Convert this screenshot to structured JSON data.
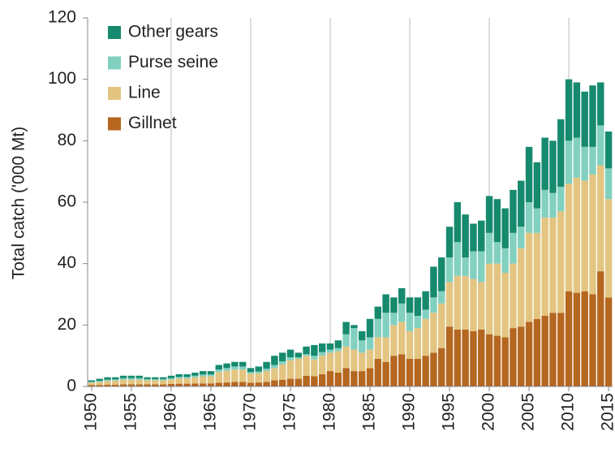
{
  "chart_data": {
    "type": "stacked_bar",
    "y_label": "Total catch ('000 Mt)",
    "x": [
      1950,
      1951,
      1952,
      1953,
      1954,
      1955,
      1956,
      1957,
      1958,
      1959,
      1960,
      1961,
      1962,
      1963,
      1964,
      1965,
      1966,
      1967,
      1968,
      1969,
      1970,
      1971,
      1972,
      1973,
      1974,
      1975,
      1976,
      1977,
      1978,
      1979,
      1980,
      1981,
      1982,
      1983,
      1984,
      1985,
      1986,
      1987,
      1988,
      1989,
      1990,
      1991,
      1992,
      1993,
      1994,
      1995,
      1996,
      1997,
      1998,
      1999,
      2000,
      2001,
      2002,
      2003,
      2004,
      2005,
      2006,
      2007,
      2008,
      2009,
      2010,
      2011,
      2012,
      2013,
      2014,
      2015
    ],
    "xlim": [
      1949.5,
      2015.5
    ],
    "xticks": [
      1950,
      1955,
      1960,
      1965,
      1970,
      1975,
      1980,
      1985,
      1990,
      1995,
      2000,
      2005,
      2010,
      2015
    ],
    "xgrid": [
      1960,
      1970,
      1980,
      1990,
      2000,
      2010
    ],
    "ylim": [
      0,
      120
    ],
    "yticks": [
      0,
      20,
      40,
      60,
      80,
      100,
      120
    ],
    "legend": "top-left",
    "series": [
      {
        "name": "Gillnet",
        "color": "#b5661f",
        "values": [
          0.5,
          0.5,
          0.6,
          0.6,
          0.7,
          0.7,
          0.7,
          0.7,
          0.7,
          0.7,
          0.8,
          0.9,
          0.9,
          1,
          1,
          1,
          1.2,
          1.3,
          1.5,
          1.5,
          1.2,
          1.3,
          1.5,
          2,
          2.2,
          2.5,
          2.5,
          3.5,
          3.3,
          4,
          5,
          4.5,
          6,
          5,
          5,
          6,
          9,
          8,
          10,
          10.5,
          9,
          9,
          10,
          11,
          12.5,
          19.5,
          18.5,
          18.5,
          18,
          18.5,
          17,
          16.5,
          16,
          19,
          19.5,
          21,
          22,
          23,
          24,
          24,
          31,
          30.5,
          31,
          30,
          37.5,
          29
        ]
      },
      {
        "name": "Line",
        "color": "#e3c581",
        "values": [
          0.8,
          1,
          1.2,
          1.3,
          1.5,
          1.5,
          1.5,
          1.3,
          1.3,
          1.3,
          1.5,
          1.7,
          1.7,
          2,
          2.3,
          2.3,
          3.5,
          3.8,
          4,
          4,
          3,
          3,
          3.5,
          4,
          5,
          6,
          6.5,
          6.5,
          5.5,
          6,
          6,
          7,
          7,
          7,
          6,
          6,
          7,
          8,
          10,
          10.5,
          9,
          10,
          12,
          13,
          14.5,
          14.5,
          17.5,
          17.5,
          17,
          15.5,
          23,
          23.5,
          21,
          21,
          25.5,
          29,
          28,
          32,
          31,
          33,
          35,
          37.5,
          36,
          39,
          34.5,
          32
        ]
      },
      {
        "name": "Purse seine",
        "color": "#82d0c0",
        "values": [
          0.2,
          0.3,
          0.4,
          0.4,
          0.5,
          0.5,
          0.5,
          0.4,
          0.4,
          0.4,
          0.4,
          0.5,
          0.5,
          0.5,
          0.6,
          0.6,
          0.8,
          0.9,
          1,
          1,
          0.5,
          0.6,
          0.8,
          1,
          1,
          1,
          0.5,
          0.5,
          1.2,
          1.2,
          1,
          1,
          4,
          7,
          4,
          4,
          6,
          8,
          4,
          6,
          6,
          4,
          3,
          5,
          4,
          8,
          11,
          6,
          9,
          10,
          10,
          7,
          8,
          10,
          7,
          10,
          8,
          9,
          8,
          8,
          14,
          13,
          11,
          9,
          13,
          10
        ]
      },
      {
        "name": "Other gears",
        "color": "#168a6e",
        "values": [
          0.5,
          0.7,
          0.8,
          0.7,
          0.8,
          0.8,
          0.8,
          0.6,
          0.6,
          0.6,
          0.8,
          0.9,
          0.9,
          1,
          1.1,
          1.1,
          1.5,
          1.5,
          1.5,
          1.5,
          1.3,
          1.6,
          2.2,
          3,
          2.8,
          2.5,
          1.5,
          2.5,
          3.5,
          2.8,
          2,
          2.5,
          4,
          1,
          3,
          6,
          4,
          6,
          5,
          5,
          5,
          6,
          6,
          10,
          11,
          10,
          13,
          14,
          9,
          10,
          12,
          14,
          13,
          14,
          15,
          18,
          15,
          17,
          17,
          22,
          20,
          18,
          18,
          20,
          14,
          12
        ]
      }
    ]
  }
}
